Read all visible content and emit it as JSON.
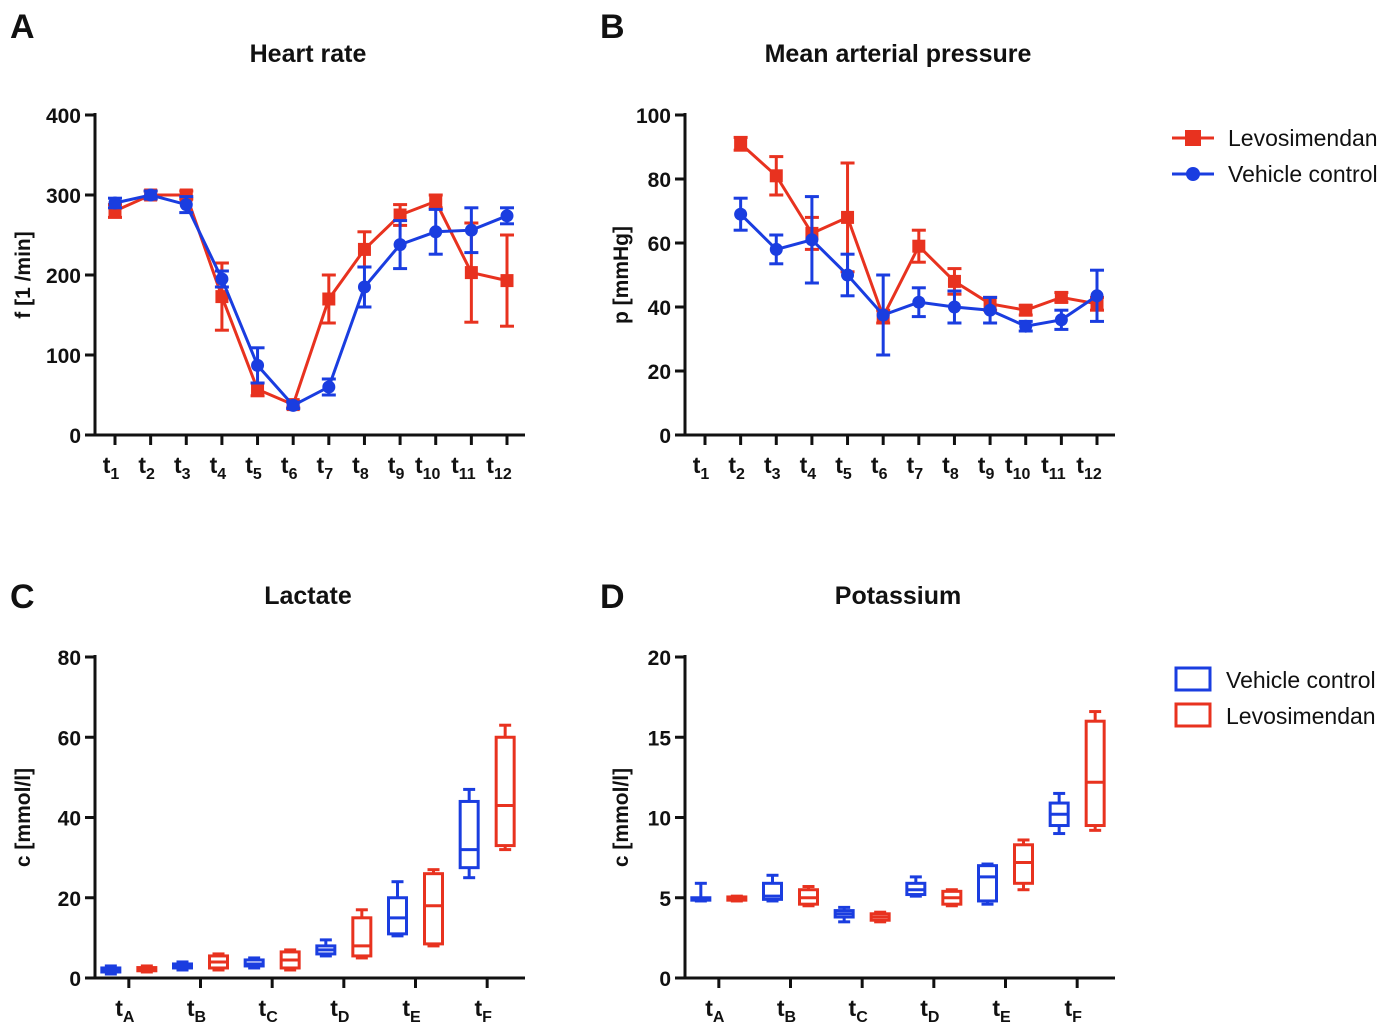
{
  "legends": {
    "top": [
      {
        "label": "Levosimendan",
        "color": "#e8321f",
        "marker": "square"
      },
      {
        "label": "Vehicle control",
        "color": "#1a3de0",
        "marker": "circle"
      }
    ],
    "bottom": [
      {
        "label": "Vehicle control",
        "color": "#1a3de0"
      },
      {
        "label": "Levosimendan",
        "color": "#e8321f"
      }
    ]
  },
  "chart_data": [
    {
      "panel": "A",
      "type": "line",
      "title": "Heart rate",
      "ylabel": "f [1 /min]",
      "xlabel": "",
      "ylim": [
        0,
        400
      ],
      "yticks": [
        0,
        100,
        200,
        300,
        400
      ],
      "categories": [
        "t1",
        "t2",
        "t3",
        "t4",
        "t5",
        "t6",
        "t7",
        "t8",
        "t9",
        "t10",
        "t11",
        "t12"
      ],
      "tick_labels": [
        {
          "main": "t",
          "sub": "1"
        },
        {
          "main": "t",
          "sub": "2"
        },
        {
          "main": "t",
          "sub": "3"
        },
        {
          "main": "t",
          "sub": "4"
        },
        {
          "main": "t",
          "sub": "5"
        },
        {
          "main": "t",
          "sub": "6"
        },
        {
          "main": "t",
          "sub": "7"
        },
        {
          "main": "t",
          "sub": "8"
        },
        {
          "main": "t",
          "sub": "9"
        },
        {
          "main": "t",
          "sub": "10"
        },
        {
          "main": "t",
          "sub": "11"
        },
        {
          "main": "t",
          "sub": "12"
        }
      ],
      "series": [
        {
          "name": "Levosimendan",
          "color": "#e8321f",
          "marker": "square",
          "values": [
            280,
            300,
            300,
            173,
            57,
            38,
            170,
            232,
            275,
            292,
            203,
            193
          ],
          "errors": [
            8,
            5,
            5,
            42,
            8,
            4,
            30,
            22,
            13,
            8,
            62,
            57
          ]
        },
        {
          "name": "Vehicle control",
          "color": "#1a3de0",
          "marker": "circle",
          "values": [
            290,
            300,
            288,
            195,
            87,
            37,
            60,
            185,
            238,
            254,
            256,
            274
          ],
          "errors": [
            6,
            5,
            10,
            10,
            22,
            4,
            10,
            25,
            30,
            28,
            28,
            10
          ]
        }
      ]
    },
    {
      "panel": "B",
      "type": "line",
      "title": "Mean arterial pressure",
      "ylabel": "p [mmHg]",
      "xlabel": "",
      "ylim": [
        0,
        100
      ],
      "yticks": [
        0,
        20,
        40,
        60,
        80,
        100
      ],
      "categories": [
        "t1",
        "t2",
        "t3",
        "t4",
        "t5",
        "t6",
        "t7",
        "t8",
        "t9",
        "t10",
        "t11",
        "t12"
      ],
      "tick_labels": [
        {
          "main": "t",
          "sub": "1"
        },
        {
          "main": "t",
          "sub": "2"
        },
        {
          "main": "t",
          "sub": "3"
        },
        {
          "main": "t",
          "sub": "4"
        },
        {
          "main": "t",
          "sub": "5"
        },
        {
          "main": "t",
          "sub": "6"
        },
        {
          "main": "t",
          "sub": "7"
        },
        {
          "main": "t",
          "sub": "8"
        },
        {
          "main": "t",
          "sub": "9"
        },
        {
          "main": "t",
          "sub": "10"
        },
        {
          "main": "t",
          "sub": "11"
        },
        {
          "main": "t",
          "sub": "12"
        }
      ],
      "series": [
        {
          "name": "Levosimendan",
          "color": "#e8321f",
          "marker": "square",
          "values": [
            null,
            91,
            81,
            63,
            68,
            37,
            59,
            48,
            41,
            39,
            43,
            41
          ],
          "errors": [
            null,
            2,
            6,
            5,
            17,
            2,
            5,
            4,
            2,
            1.5,
            1.5,
            2
          ]
        },
        {
          "name": "Vehicle control",
          "color": "#1a3de0",
          "marker": "circle",
          "values": [
            null,
            69,
            58,
            61,
            50,
            37.5,
            41.5,
            40,
            39,
            34,
            36,
            43.5
          ],
          "errors": [
            null,
            5,
            4.5,
            13.5,
            6.5,
            12.5,
            4.5,
            5,
            4,
            1.5,
            3,
            8
          ]
        }
      ]
    },
    {
      "panel": "C",
      "type": "box",
      "title": "Lactate",
      "ylabel": "c [mmol/l]",
      "xlabel": "",
      "ylim": [
        0,
        80
      ],
      "yticks": [
        0,
        20,
        40,
        60,
        80
      ],
      "categories": [
        "tA",
        "tB",
        "tC",
        "tD",
        "tE",
        "tF"
      ],
      "tick_labels": [
        {
          "main": "t",
          "sub": "A"
        },
        {
          "main": "t",
          "sub": "B"
        },
        {
          "main": "t",
          "sub": "C"
        },
        {
          "main": "t",
          "sub": "D"
        },
        {
          "main": "t",
          "sub": "E"
        },
        {
          "main": "t",
          "sub": "F"
        }
      ],
      "series": [
        {
          "name": "Vehicle control",
          "color": "#1a3de0",
          "boxes": [
            {
              "min": 1.0,
              "q1": 1.5,
              "median": 2.0,
              "q3": 2.5,
              "max": 3.0
            },
            {
              "min": 2.0,
              "q1": 2.5,
              "median": 3.0,
              "q3": 3.5,
              "max": 4.0
            },
            {
              "min": 2.5,
              "q1": 3.0,
              "median": 3.5,
              "q3": 4.5,
              "max": 5.0
            },
            {
              "min": 5.5,
              "q1": 6.0,
              "median": 7.0,
              "q3": 8.0,
              "max": 9.5
            },
            {
              "min": 10.5,
              "q1": 11.0,
              "median": 15.0,
              "q3": 20.0,
              "max": 24.0
            },
            {
              "min": 25.0,
              "q1": 27.5,
              "median": 32.0,
              "q3": 44.0,
              "max": 47.0
            }
          ]
        },
        {
          "name": "Levosimendan",
          "color": "#e8321f",
          "boxes": [
            {
              "min": 1.5,
              "q1": 1.8,
              "median": 2.2,
              "q3": 2.6,
              "max": 3.0
            },
            {
              "min": 2.0,
              "q1": 2.5,
              "median": 4.0,
              "q3": 5.5,
              "max": 6.0
            },
            {
              "min": 2.0,
              "q1": 2.5,
              "median": 4.5,
              "q3": 6.5,
              "max": 7.0
            },
            {
              "min": 5.0,
              "q1": 5.5,
              "median": 8.0,
              "q3": 15.0,
              "max": 17.0
            },
            {
              "min": 8.0,
              "q1": 8.5,
              "median": 18.0,
              "q3": 26.0,
              "max": 27.0
            },
            {
              "min": 32.0,
              "q1": 33.0,
              "median": 43.0,
              "q3": 60.0,
              "max": 63.0
            }
          ]
        }
      ]
    },
    {
      "panel": "D",
      "type": "box",
      "title": "Potassium",
      "ylabel": "c [mmol/l]",
      "xlabel": "",
      "ylim": [
        0,
        20
      ],
      "yticks": [
        0,
        5,
        10,
        15,
        20
      ],
      "categories": [
        "tA",
        "tB",
        "tC",
        "tD",
        "tE",
        "tF"
      ],
      "tick_labels": [
        {
          "main": "t",
          "sub": "A"
        },
        {
          "main": "t",
          "sub": "B"
        },
        {
          "main": "t",
          "sub": "C"
        },
        {
          "main": "t",
          "sub": "D"
        },
        {
          "main": "t",
          "sub": "E"
        },
        {
          "main": "t",
          "sub": "F"
        }
      ],
      "series": [
        {
          "name": "Vehicle control",
          "color": "#1a3de0",
          "boxes": [
            {
              "min": 4.8,
              "q1": 4.85,
              "median": 4.9,
              "q3": 5.0,
              "max": 5.9
            },
            {
              "min": 4.8,
              "q1": 4.9,
              "median": 5.1,
              "q3": 5.9,
              "max": 6.4
            },
            {
              "min": 3.5,
              "q1": 3.8,
              "median": 4.0,
              "q3": 4.2,
              "max": 4.4
            },
            {
              "min": 5.1,
              "q1": 5.2,
              "median": 5.5,
              "q3": 5.9,
              "max": 6.3
            },
            {
              "min": 4.6,
              "q1": 4.8,
              "median": 6.3,
              "q3": 7.0,
              "max": 7.1
            },
            {
              "min": 9.0,
              "q1": 9.5,
              "median": 10.2,
              "q3": 10.9,
              "max": 11.5
            }
          ]
        },
        {
          "name": "Levosimendan",
          "color": "#e8321f",
          "boxes": [
            {
              "min": 4.8,
              "q1": 4.85,
              "median": 4.95,
              "q3": 5.05,
              "max": 5.1
            },
            {
              "min": 4.5,
              "q1": 4.6,
              "median": 5.0,
              "q3": 5.5,
              "max": 5.7
            },
            {
              "min": 3.5,
              "q1": 3.6,
              "median": 3.8,
              "q3": 4.0,
              "max": 4.1
            },
            {
              "min": 4.5,
              "q1": 4.6,
              "median": 5.0,
              "q3": 5.4,
              "max": 5.5
            },
            {
              "min": 5.5,
              "q1": 5.9,
              "median": 7.2,
              "q3": 8.3,
              "max": 8.6
            },
            {
              "min": 9.2,
              "q1": 9.5,
              "median": 12.2,
              "q3": 16.0,
              "max": 16.6
            }
          ]
        }
      ]
    }
  ]
}
